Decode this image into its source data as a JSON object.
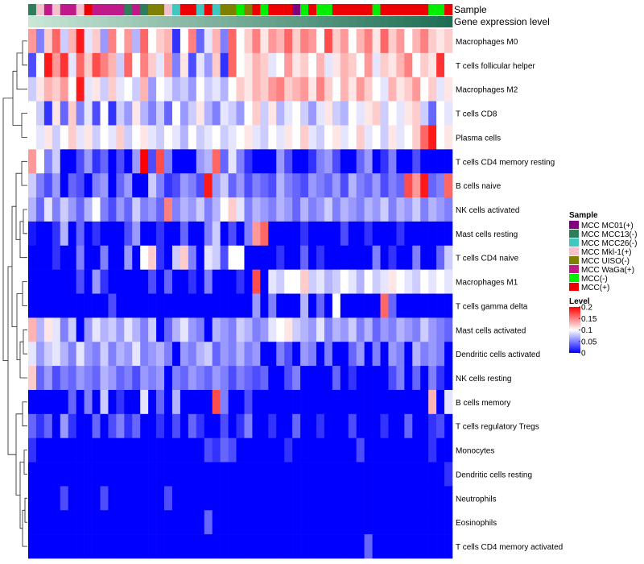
{
  "chart_data": {
    "type": "heatmap",
    "title": "",
    "annotation_labels": [
      "Sample",
      "Gene expression level"
    ],
    "row_labels": [
      "Macrophages M0",
      "T cells follicular helper",
      "Macrophages M2",
      "T cells CD8",
      "Plasma cells",
      "T cells CD4 memory resting",
      "B cells naive",
      "NK cells activated",
      "Mast cells resting",
      "T cells CD4 naive",
      "Macrophages M1",
      "T cells gamma delta",
      "Mast cells activated",
      "Dendritic cells activated",
      "NK cells resting",
      "B cells memory",
      "T cells regulatory  Tregs",
      "Monocytes",
      "Dendritic cells resting",
      "Neutrophils",
      "Eosinophils",
      "T cells CD4 memory activated"
    ],
    "column_count": 53,
    "sample_annotation": [
      "MC13",
      "MKL1",
      "WAGA",
      "MKL1",
      "WAGA",
      "WAGA",
      "MKL1",
      "POS",
      "WAGA",
      "WAGA",
      "WAGA",
      "WAGA",
      "MC13",
      "WAGA",
      "MC13",
      "UISO",
      "UISO",
      "MKL1",
      "MC26",
      "POS",
      "POS",
      "MC26",
      "POS",
      "MC26",
      "UISO",
      "UISO",
      "NEG",
      "UISO",
      "POS",
      "NEG",
      "POS",
      "POS",
      "POS",
      "MC01",
      "NEG",
      "POS",
      "NEG",
      "NEG",
      "POS",
      "POS",
      "POS",
      "POS",
      "POS",
      "NEG",
      "POS",
      "POS",
      "POS",
      "POS",
      "POS",
      "POS",
      "NEG",
      "NEG",
      "POS"
    ],
    "expression_annotation_range": [
      "#c8e6d6",
      "#1e6e55"
    ],
    "legend_sample": {
      "title": "Sample",
      "entries": [
        {
          "label": "MCC MC01(+)",
          "color": "#800080"
        },
        {
          "label": "MCC MCC13(-)",
          "color": "#2e7d5b"
        },
        {
          "label": "MCC MCC26(-)",
          "color": "#40c8c0"
        },
        {
          "label": "MCC Mkl-1(+)",
          "color": "#f4c0cc"
        },
        {
          "label": "MCC UISO(-)",
          "color": "#808000"
        },
        {
          "label": "MCC WaGa(+)",
          "color": "#c01a8a"
        },
        {
          "label": "MCC(-)",
          "color": "#00ee00"
        },
        {
          "label": "MCC(+)",
          "color": "#ee0000"
        }
      ]
    },
    "legend_level": {
      "title": "Level",
      "ticks": [
        {
          "label": "0.2",
          "value": 0.2
        },
        {
          "label": "0.15",
          "value": 0.15
        },
        {
          "label": "0.1",
          "value": 0.1
        },
        {
          "label": "0.05",
          "value": 0.05
        },
        {
          "label": "0",
          "value": 0
        }
      ],
      "range": [
        0,
        0.2
      ],
      "color_stops": [
        {
          "value": 0,
          "color": "#0000ff"
        },
        {
          "value": 0.1,
          "color": "#ffffff"
        },
        {
          "value": 0.2,
          "color": "#ff0000"
        }
      ]
    },
    "values": [
      [
        0.14,
        0.05,
        0.12,
        0.16,
        0.08,
        0.13,
        0.19,
        0.09,
        0.12,
        0.06,
        0.15,
        0.1,
        0.14,
        0.07,
        0.16,
        0.1,
        0.12,
        0.13,
        0.02,
        0.1,
        0.15,
        0.04,
        0.09,
        0.13,
        0.05,
        0.16,
        0.1,
        0.12,
        0.15,
        0.11,
        0.14,
        0.13,
        0.16,
        0.12,
        0.15,
        0.14,
        0.1,
        0.17,
        0.12,
        0.14,
        0.1,
        0.13,
        0.15,
        0.11,
        0.16,
        0.12,
        0.14,
        0.1,
        0.13,
        0.15,
        0.12,
        0.11,
        0.12
      ],
      [
        0.03,
        0.1,
        0.19,
        0.14,
        0.18,
        0.09,
        0.16,
        0.12,
        0.17,
        0.15,
        0.13,
        0.08,
        0.16,
        0.1,
        0.15,
        0.12,
        0.09,
        0.14,
        0.05,
        0.11,
        0.03,
        0.09,
        0.06,
        0.12,
        0.02,
        0.16,
        0.1,
        0.11,
        0.13,
        0.12,
        0.09,
        0.1,
        0.14,
        0.11,
        0.12,
        0.1,
        0.13,
        0.09,
        0.11,
        0.13,
        0.12,
        0.1,
        0.14,
        0.09,
        0.12,
        0.11,
        0.13,
        0.15,
        0.1,
        0.12,
        0.11,
        0.18,
        0.1
      ],
      [
        0.08,
        0.11,
        0.13,
        0.12,
        0.14,
        0.1,
        0.19,
        0.09,
        0.11,
        0.08,
        0.12,
        0.09,
        0.1,
        0.08,
        0.13,
        0.06,
        0.1,
        0.09,
        0.07,
        0.08,
        0.06,
        0.1,
        0.08,
        0.09,
        0.07,
        0.1,
        0.12,
        0.11,
        0.13,
        0.12,
        0.14,
        0.15,
        0.12,
        0.13,
        0.14,
        0.11,
        0.15,
        0.12,
        0.1,
        0.13,
        0.11,
        0.14,
        0.12,
        0.1,
        0.09,
        0.13,
        0.11,
        0.12,
        0.14,
        0.1,
        0.12,
        0.09,
        0.11
      ],
      [
        0.1,
        0.08,
        0.02,
        0.11,
        0.04,
        0.12,
        0.05,
        0.09,
        0.03,
        0.1,
        0.02,
        0.08,
        0.06,
        0.11,
        0.07,
        0.05,
        0.08,
        0.04,
        0.1,
        0.06,
        0.08,
        0.11,
        0.07,
        0.05,
        0.09,
        0.08,
        0.06,
        0.1,
        0.12,
        0.08,
        0.11,
        0.07,
        0.09,
        0.1,
        0.08,
        0.06,
        0.09,
        0.11,
        0.08,
        0.07,
        0.1,
        0.09,
        0.11,
        0.12,
        0.08,
        0.1,
        0.09,
        0.11,
        0.12,
        0.08,
        0.04,
        0.1,
        0.09
      ],
      [
        0.1,
        0.09,
        0.11,
        0.08,
        0.1,
        0.12,
        0.09,
        0.11,
        0.08,
        0.1,
        0.09,
        0.12,
        0.08,
        0.1,
        0.11,
        0.09,
        0.08,
        0.1,
        0.09,
        0.07,
        0.1,
        0.08,
        0.09,
        0.1,
        0.08,
        0.09,
        0.1,
        0.11,
        0.09,
        0.08,
        0.1,
        0.09,
        0.11,
        0.1,
        0.12,
        0.09,
        0.08,
        0.1,
        0.11,
        0.09,
        0.1,
        0.12,
        0.09,
        0.1,
        0.08,
        0.11,
        0.09,
        0.1,
        0.12,
        0.16,
        0.19,
        0.1,
        0.11
      ],
      [
        0.14,
        0.1,
        0.05,
        0.08,
        0.0,
        0.0,
        0.03,
        0.06,
        0.02,
        0.04,
        0.0,
        0.03,
        0.0,
        0.06,
        0.2,
        0.03,
        0.17,
        0.05,
        0.0,
        0.0,
        0.0,
        0.06,
        0.07,
        0.16,
        0.04,
        0.09,
        0.05,
        0.02,
        0.0,
        0.0,
        0.0,
        0.06,
        0.03,
        0.0,
        0.0,
        0.02,
        0.05,
        0.06,
        0.03,
        0.0,
        0.0,
        0.04,
        0.06,
        0.0,
        0.02,
        0.05,
        0.0,
        0.0,
        0.03,
        0.0,
        0.0,
        0.0,
        0.0
      ],
      [
        0.08,
        0.05,
        0.03,
        0.06,
        0.0,
        0.04,
        0.03,
        0.0,
        0.05,
        0.06,
        0.0,
        0.04,
        0.06,
        0.0,
        0.0,
        0.08,
        0.05,
        0.02,
        0.03,
        0.06,
        0.05,
        0.03,
        0.19,
        0.06,
        0.08,
        0.04,
        0.06,
        0.03,
        0.05,
        0.04,
        0.03,
        0.07,
        0.05,
        0.04,
        0.03,
        0.06,
        0.05,
        0.04,
        0.06,
        0.03,
        0.07,
        0.05,
        0.04,
        0.06,
        0.03,
        0.05,
        0.04,
        0.17,
        0.14,
        0.19,
        0.04,
        0.05,
        0.16
      ],
      [
        0.07,
        0.04,
        0.09,
        0.05,
        0.08,
        0.06,
        0.04,
        0.07,
        0.1,
        0.05,
        0.03,
        0.06,
        0.04,
        0.08,
        0.05,
        0.06,
        0.04,
        0.15,
        0.05,
        0.07,
        0.06,
        0.08,
        0.05,
        0.07,
        0.1,
        0.12,
        0.09,
        0.05,
        0.07,
        0.06,
        0.05,
        0.07,
        0.06,
        0.04,
        0.07,
        0.05,
        0.06,
        0.08,
        0.05,
        0.07,
        0.06,
        0.05,
        0.07,
        0.06,
        0.08,
        0.05,
        0.07,
        0.06,
        0.08,
        0.05,
        0.07,
        0.06,
        0.05
      ],
      [
        0.01,
        0.0,
        0.0,
        0.02,
        0.07,
        0.0,
        0.04,
        0.0,
        0.02,
        0.0,
        0.0,
        0.0,
        0.03,
        0.06,
        0.0,
        0.0,
        0.02,
        0.0,
        0.0,
        0.04,
        0.0,
        0.0,
        0.05,
        0.08,
        0.0,
        0.03,
        0.0,
        0.05,
        0.14,
        0.16,
        0.0,
        0.0,
        0.0,
        0.0,
        0.02,
        0.0,
        0.0,
        0.0,
        0.0,
        0.03,
        0.0,
        0.0,
        0.02,
        0.0,
        0.0,
        0.0,
        0.02,
        0.0,
        0.0,
        0.0,
        0.0,
        0.0,
        0.0
      ],
      [
        0.0,
        0.0,
        0.0,
        0.02,
        0.0,
        0.0,
        0.05,
        0.0,
        0.0,
        0.05,
        0.0,
        0.0,
        0.06,
        0.0,
        0.1,
        0.12,
        0.02,
        0.0,
        0.08,
        0.12,
        0.05,
        0.0,
        0.09,
        0.08,
        0.03,
        0.1,
        0.1,
        0.0,
        0.0,
        0.0,
        0.0,
        0.02,
        0.0,
        0.0,
        0.04,
        0.0,
        0.02,
        0.0,
        0.0,
        0.0,
        0.0,
        0.0,
        0.0,
        0.05,
        0.0,
        0.02,
        0.0,
        0.0,
        0.05,
        0.0,
        0.0,
        0.04,
        0.08
      ],
      [
        0.0,
        0.0,
        0.0,
        0.0,
        0.0,
        0.0,
        0.03,
        0.0,
        0.06,
        0.02,
        0.0,
        0.0,
        0.0,
        0.0,
        0.0,
        0.03,
        0.0,
        0.04,
        0.0,
        0.0,
        0.02,
        0.0,
        0.05,
        0.0,
        0.0,
        0.0,
        0.02,
        0.0,
        0.17,
        0.0,
        0.09,
        0.08,
        0.1,
        0.1,
        0.12,
        0.08,
        0.09,
        0.07,
        0.08,
        0.1,
        0.09,
        0.07,
        0.1,
        0.08,
        0.09,
        0.11,
        0.1,
        0.09,
        0.08,
        0.1,
        0.09,
        0.1,
        0.09
      ],
      [
        0.0,
        0.0,
        0.0,
        0.0,
        0.0,
        0.0,
        0.0,
        0.0,
        0.0,
        0.0,
        0.03,
        0.0,
        0.0,
        0.0,
        0.0,
        0.0,
        0.0,
        0.0,
        0.0,
        0.0,
        0.0,
        0.0,
        0.0,
        0.0,
        0.0,
        0.0,
        0.0,
        0.0,
        0.06,
        0.0,
        0.05,
        0.0,
        0.0,
        0.0,
        0.07,
        0.0,
        0.04,
        0.0,
        0.1,
        0.0,
        0.0,
        0.0,
        0.0,
        0.0,
        0.16,
        0.04,
        0.0,
        0.0,
        0.0,
        0.0,
        0.0,
        0.0,
        0.0
      ],
      [
        0.13,
        0.07,
        0.11,
        0.09,
        0.05,
        0.08,
        0.0,
        0.06,
        0.09,
        0.07,
        0.08,
        0.06,
        0.09,
        0.07,
        0.05,
        0.08,
        0.0,
        0.04,
        0.07,
        0.09,
        0.06,
        0.05,
        0.0,
        0.07,
        0.06,
        0.05,
        0.08,
        0.07,
        0.05,
        0.06,
        0.09,
        0.1,
        0.11,
        0.08,
        0.07,
        0.06,
        0.09,
        0.05,
        0.07,
        0.06,
        0.08,
        0.05,
        0.07,
        0.04,
        0.06,
        0.05,
        0.07,
        0.06,
        0.05,
        0.08,
        0.06,
        0.05,
        0.04
      ],
      [
        0.09,
        0.06,
        0.08,
        0.09,
        0.07,
        0.05,
        0.09,
        0.06,
        0.05,
        0.08,
        0.05,
        0.07,
        0.06,
        0.09,
        0.05,
        0.06,
        0.07,
        0.05,
        0.0,
        0.06,
        0.05,
        0.07,
        0.08,
        0.04,
        0.06,
        0.05,
        0.07,
        0.05,
        0.06,
        0.0,
        0.0,
        0.05,
        0.03,
        0.0,
        0.06,
        0.05,
        0.0,
        0.05,
        0.0,
        0.0,
        0.04,
        0.06,
        0.0,
        0.05,
        0.0,
        0.06,
        0.05,
        0.0,
        0.07,
        0.05,
        0.06,
        0.05,
        0.0
      ],
      [
        0.12,
        0.04,
        0.06,
        0.03,
        0.05,
        0.04,
        0.06,
        0.05,
        0.04,
        0.07,
        0.06,
        0.04,
        0.05,
        0.03,
        0.06,
        0.05,
        0.06,
        0.0,
        0.05,
        0.04,
        0.06,
        0.05,
        0.04,
        0.06,
        0.05,
        0.03,
        0.05,
        0.04,
        0.03,
        0.04,
        0.0,
        0.0,
        0.03,
        0.05,
        0.0,
        0.0,
        0.0,
        0.0,
        0.04,
        0.0,
        0.02,
        0.0,
        0.0,
        0.0,
        0.0,
        0.03,
        0.05,
        0.0,
        0.04,
        0.0,
        0.05,
        0.02,
        0.0
      ],
      [
        0.0,
        0.0,
        0.0,
        0.0,
        0.0,
        0.04,
        0.0,
        0.05,
        0.0,
        0.08,
        0.0,
        0.02,
        0.0,
        0.0,
        0.09,
        0.0,
        0.04,
        0.0,
        0.07,
        0.0,
        0.0,
        0.0,
        0.0,
        0.17,
        0.05,
        0.0,
        0.0,
        0.03,
        0.0,
        0.0,
        0.0,
        0.0,
        0.0,
        0.0,
        0.0,
        0.0,
        0.0,
        0.0,
        0.0,
        0.0,
        0.0,
        0.0,
        0.0,
        0.0,
        0.0,
        0.0,
        0.0,
        0.0,
        0.0,
        0.0,
        0.13,
        0.0,
        0.09
      ],
      [
        0.04,
        0.02,
        0.04,
        0.0,
        0.06,
        0.02,
        0.0,
        0.0,
        0.04,
        0.0,
        0.03,
        0.05,
        0.02,
        0.04,
        0.0,
        0.0,
        0.02,
        0.0,
        0.03,
        0.0,
        0.04,
        0.02,
        0.0,
        0.0,
        0.03,
        0.0,
        0.02,
        0.05,
        0.0,
        0.0,
        0.02,
        0.0,
        0.0,
        0.04,
        0.0,
        0.0,
        0.02,
        0.0,
        0.0,
        0.0,
        0.03,
        0.0,
        0.0,
        0.0,
        0.02,
        0.0,
        0.0,
        0.04,
        0.0,
        0.0,
        0.02,
        0.03,
        0.0
      ],
      [
        0.02,
        0.0,
        0.0,
        0.0,
        0.0,
        0.0,
        0.0,
        0.0,
        0.0,
        0.0,
        0.0,
        0.0,
        0.0,
        0.0,
        0.0,
        0.0,
        0.0,
        0.0,
        0.0,
        0.0,
        0.0,
        0.0,
        0.03,
        0.02,
        0.04,
        0.03,
        0.0,
        0.0,
        0.0,
        0.0,
        0.0,
        0.0,
        0.02,
        0.0,
        0.0,
        0.0,
        0.0,
        0.0,
        0.0,
        0.0,
        0.0,
        0.03,
        0.0,
        0.0,
        0.0,
        0.0,
        0.0,
        0.0,
        0.0,
        0.0,
        0.02,
        0.0,
        0.0
      ],
      [
        0.0,
        0.0,
        0.0,
        0.0,
        0.0,
        0.0,
        0.0,
        0.0,
        0.0,
        0.0,
        0.0,
        0.0,
        0.0,
        0.0,
        0.0,
        0.0,
        0.0,
        0.0,
        0.0,
        0.0,
        0.0,
        0.0,
        0.0,
        0.0,
        0.0,
        0.0,
        0.0,
        0.0,
        0.0,
        0.0,
        0.0,
        0.0,
        0.0,
        0.0,
        0.0,
        0.0,
        0.0,
        0.0,
        0.0,
        0.0,
        0.0,
        0.0,
        0.0,
        0.0,
        0.0,
        0.0,
        0.0,
        0.0,
        0.0,
        0.0,
        0.0,
        0.0,
        0.02
      ],
      [
        0.0,
        0.0,
        0.0,
        0.0,
        0.03,
        0.0,
        0.0,
        0.0,
        0.0,
        0.03,
        0.0,
        0.0,
        0.0,
        0.0,
        0.0,
        0.0,
        0.0,
        0.03,
        0.0,
        0.0,
        0.0,
        0.0,
        0.0,
        0.0,
        0.0,
        0.0,
        0.0,
        0.0,
        0.0,
        0.0,
        0.0,
        0.0,
        0.0,
        0.0,
        0.0,
        0.0,
        0.0,
        0.0,
        0.0,
        0.0,
        0.0,
        0.0,
        0.0,
        0.0,
        0.0,
        0.0,
        0.0,
        0.0,
        0.0,
        0.0,
        0.0,
        0.0,
        0.0
      ],
      [
        0.0,
        0.0,
        0.0,
        0.0,
        0.0,
        0.0,
        0.0,
        0.0,
        0.0,
        0.0,
        0.0,
        0.0,
        0.0,
        0.0,
        0.0,
        0.0,
        0.0,
        0.0,
        0.0,
        0.0,
        0.0,
        0.0,
        0.04,
        0.0,
        0.0,
        0.0,
        0.0,
        0.0,
        0.0,
        0.0,
        0.0,
        0.0,
        0.0,
        0.0,
        0.0,
        0.0,
        0.0,
        0.0,
        0.0,
        0.0,
        0.0,
        0.0,
        0.0,
        0.0,
        0.0,
        0.0,
        0.0,
        0.0,
        0.0,
        0.0,
        0.0,
        0.0,
        0.0
      ],
      [
        0.0,
        0.0,
        0.0,
        0.0,
        0.0,
        0.0,
        0.0,
        0.0,
        0.0,
        0.0,
        0.0,
        0.0,
        0.0,
        0.0,
        0.0,
        0.0,
        0.0,
        0.0,
        0.0,
        0.0,
        0.0,
        0.0,
        0.0,
        0.0,
        0.0,
        0.0,
        0.0,
        0.0,
        0.0,
        0.0,
        0.0,
        0.0,
        0.0,
        0.0,
        0.0,
        0.0,
        0.0,
        0.0,
        0.0,
        0.0,
        0.0,
        0.0,
        0.04,
        0.0,
        0.0,
        0.0,
        0.0,
        0.0,
        0.0,
        0.0,
        0.0,
        0.0,
        0.0
      ]
    ]
  }
}
